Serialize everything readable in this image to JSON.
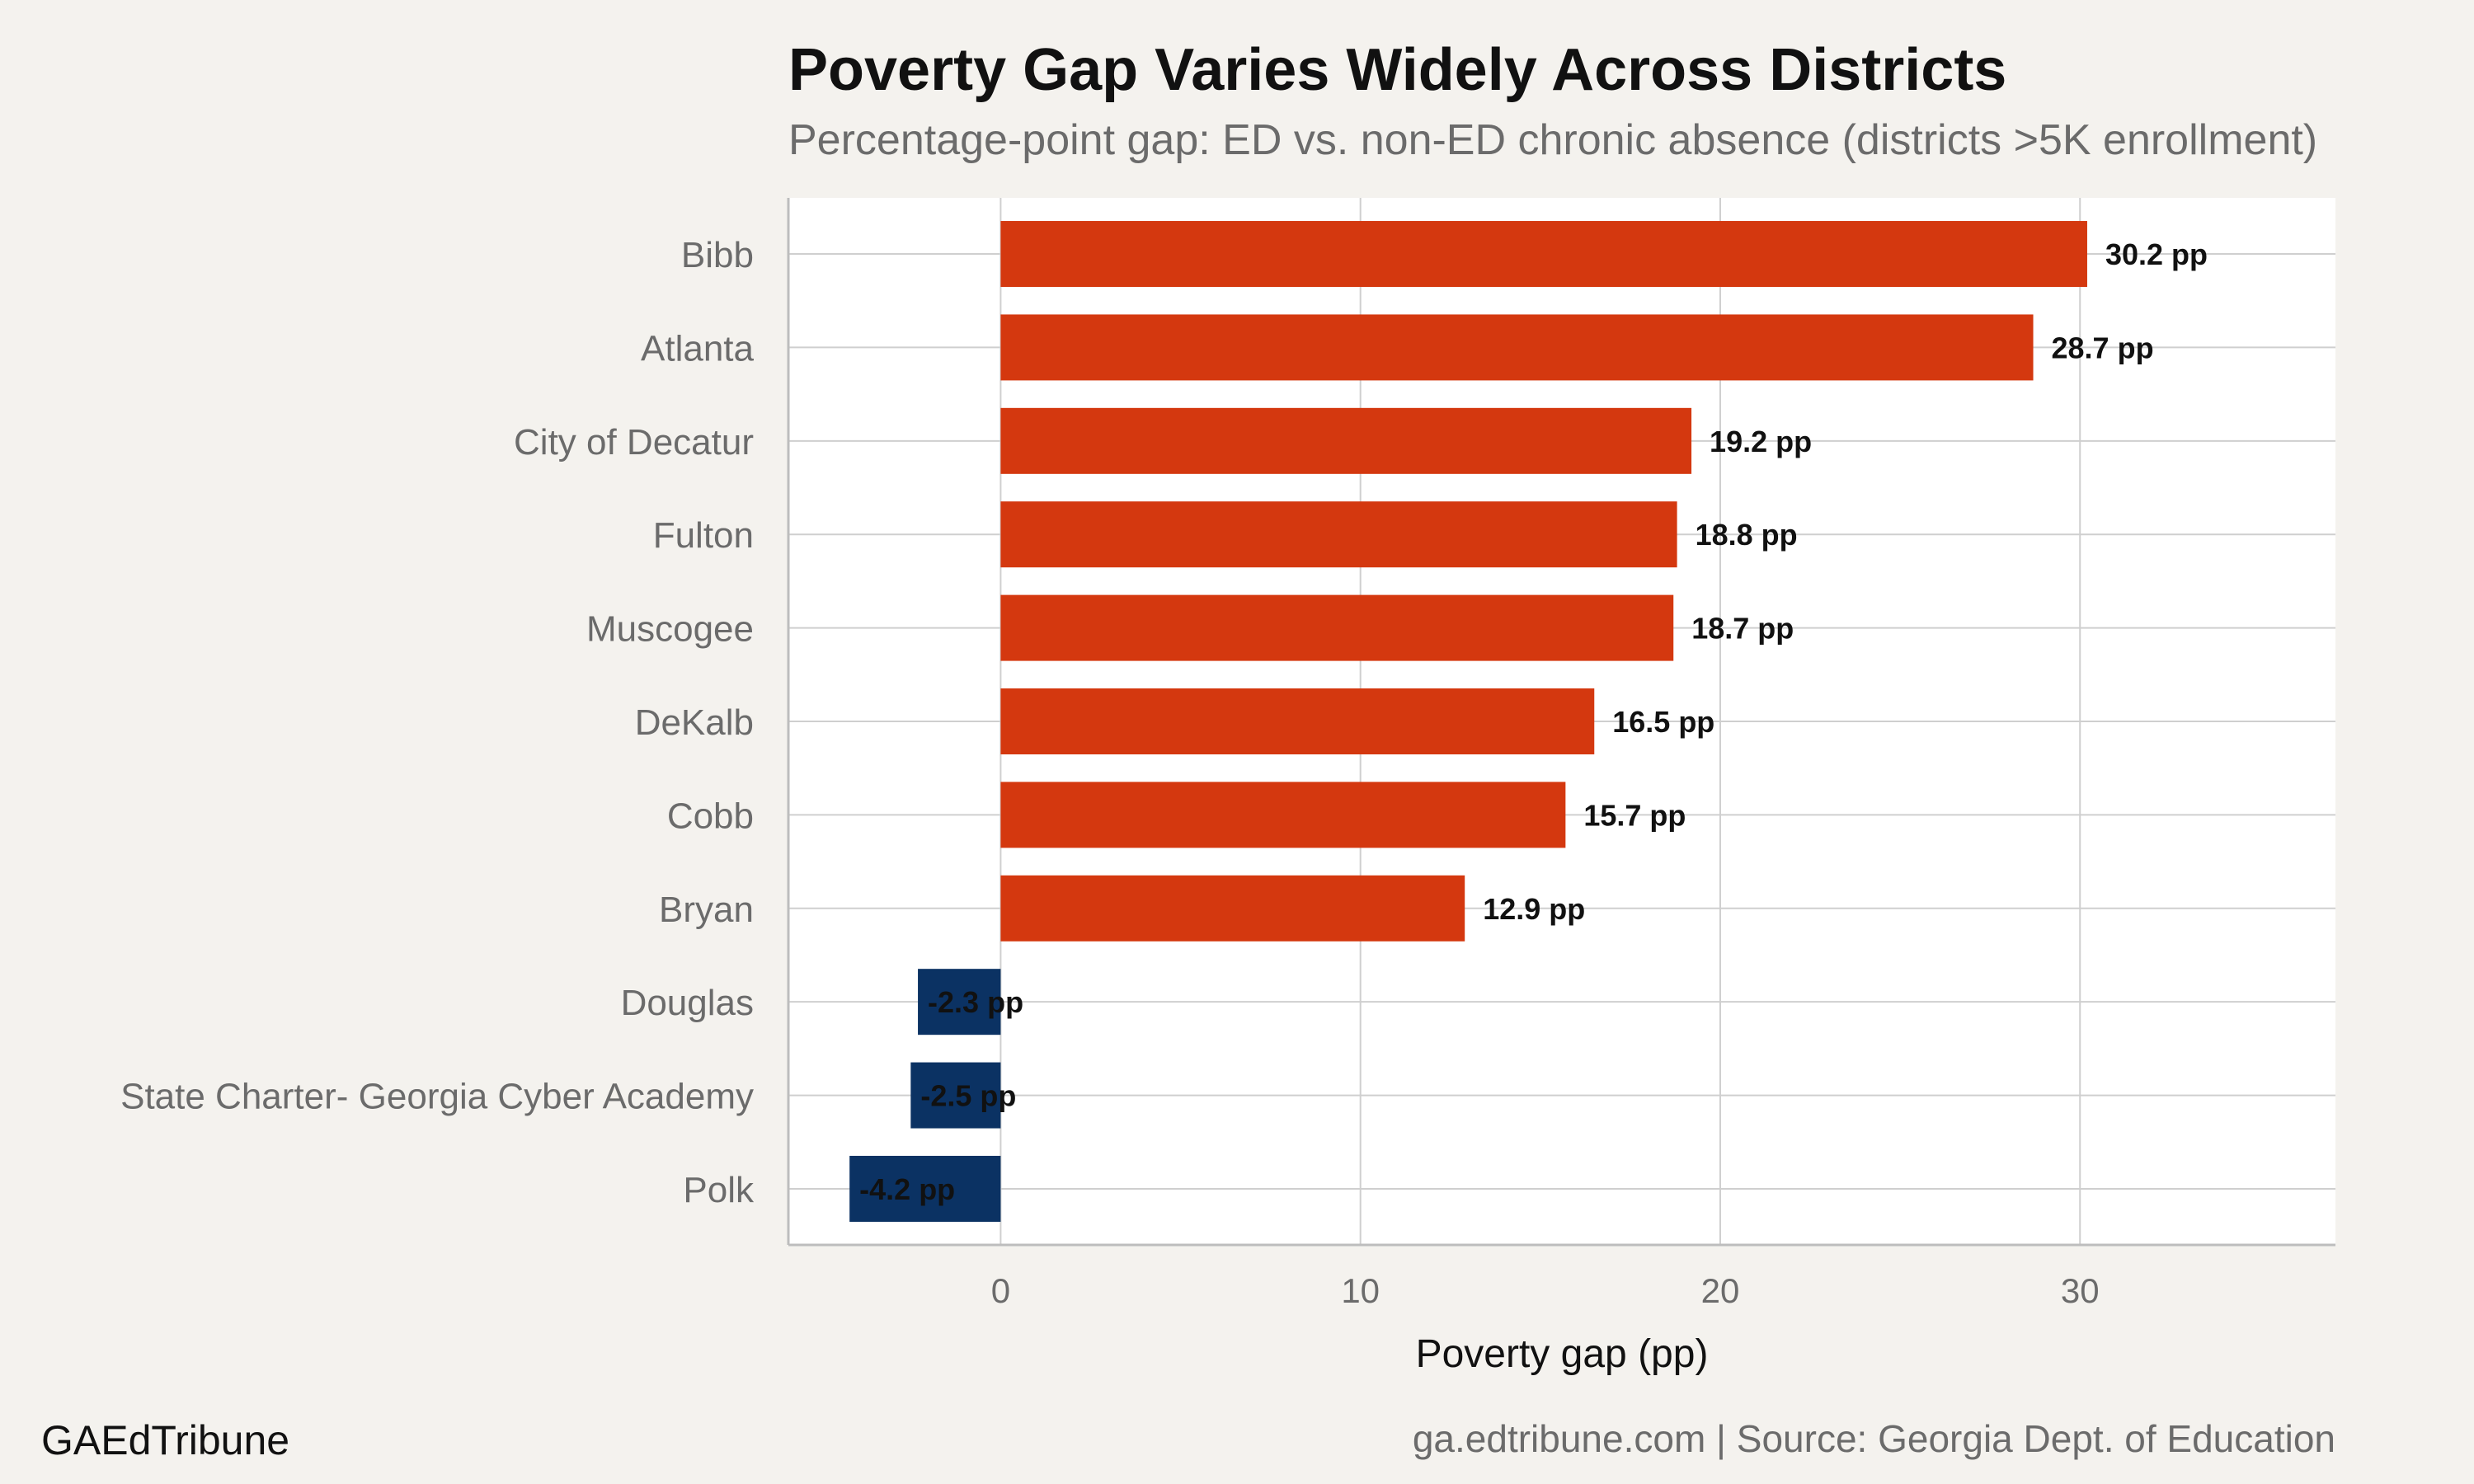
{
  "chart_data": {
    "type": "bar",
    "orientation": "horizontal",
    "title": "Poverty Gap Varies Widely Across Districts",
    "subtitle": "Percentage-point gap: ED vs. non-ED chronic absence (districts >5K enrollment)",
    "xlabel": "Poverty gap (pp)",
    "ylabel": "",
    "xlim": [
      -5.9,
      37.1
    ],
    "xticks": [
      0,
      10,
      20,
      30
    ],
    "grid": true,
    "label_suffix": " pp",
    "categories": [
      "Bibb",
      "Atlanta",
      "City of Decatur",
      "Fulton",
      "Muscogee",
      "DeKalb",
      "Cobb",
      "Bryan",
      "Douglas",
      "State Charter- Georgia Cyber Academy",
      "Polk"
    ],
    "values": [
      30.2,
      28.7,
      19.2,
      18.8,
      18.7,
      16.5,
      15.7,
      12.9,
      -2.3,
      -2.5,
      -4.2
    ],
    "colors": {
      "positive": "#d4380f",
      "negative": "#0b3263",
      "panel": "#ffffff",
      "background": "#f4f2ee",
      "grid": "#cfcfcf"
    }
  },
  "footer": {
    "brand": "GAEdTribune",
    "source": "ga.edtribune.com | Source: Georgia Dept. of Education"
  }
}
